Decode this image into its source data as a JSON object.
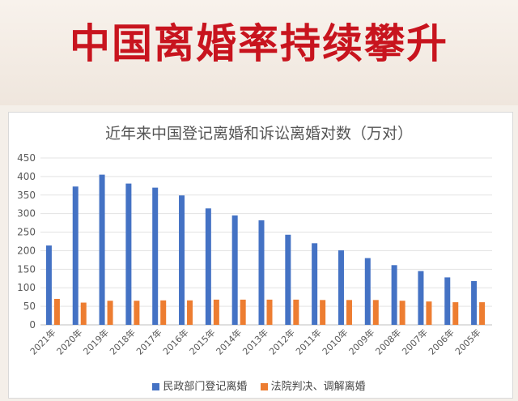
{
  "headline": "中国离婚率持续攀升",
  "chart_data": {
    "type": "bar",
    "title": "近年来中国登记离婚和诉讼离婚对数（万对）",
    "categories": [
      "2021年",
      "2020年",
      "2019年",
      "2018年",
      "2017年",
      "2016年",
      "2015年",
      "2014年",
      "2013年",
      "2012年",
      "2011年",
      "2010年",
      "2009年",
      "2008年",
      "2007年",
      "2006年",
      "2005年"
    ],
    "series": [
      {
        "name": "民政部门登记离婚",
        "color": "#4472c4",
        "values": [
          214,
          373,
          405,
          381,
          370,
          349,
          314,
          295,
          282,
          243,
          220,
          201,
          180,
          161,
          145,
          128,
          118
        ]
      },
      {
        "name": "法院判决、调解离婚",
        "color": "#ed7d31",
        "values": [
          70,
          60,
          65,
          65,
          66,
          66,
          68,
          68,
          68,
          68,
          67,
          67,
          67,
          65,
          63,
          61,
          61
        ]
      }
    ],
    "ylim": [
      0,
      450
    ],
    "yticks": [
      0,
      50,
      100,
      150,
      200,
      250,
      300,
      350,
      400,
      450
    ],
    "grid": true,
    "legend_position": "bottom"
  }
}
